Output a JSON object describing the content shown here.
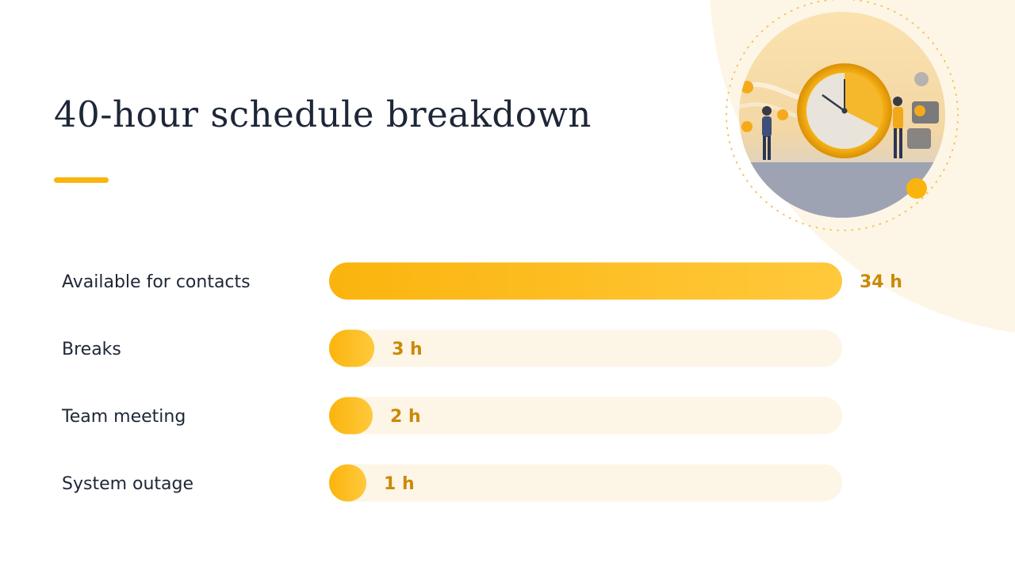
{
  "title": "40-hour schedule breakdown",
  "colors": {
    "bar_start": "#fbb40d",
    "bar_end": "#ffc93c",
    "track": "#fdf5e6",
    "value_text": "#c98a08",
    "label_text": "#1e2737",
    "accent": "#fbb40d"
  },
  "chart_data": {
    "type": "bar",
    "orientation": "horizontal",
    "total": 40,
    "unit": "h",
    "categories": [
      "Available for contacts",
      "Breaks",
      "Team meeting",
      "System outage"
    ],
    "values": [
      34,
      3,
      2,
      1
    ],
    "value_labels": [
      "34 h",
      "3 h",
      "2 h",
      "1 h"
    ],
    "xlim": [
      0,
      34
    ],
    "grid": false,
    "legend": "none"
  }
}
